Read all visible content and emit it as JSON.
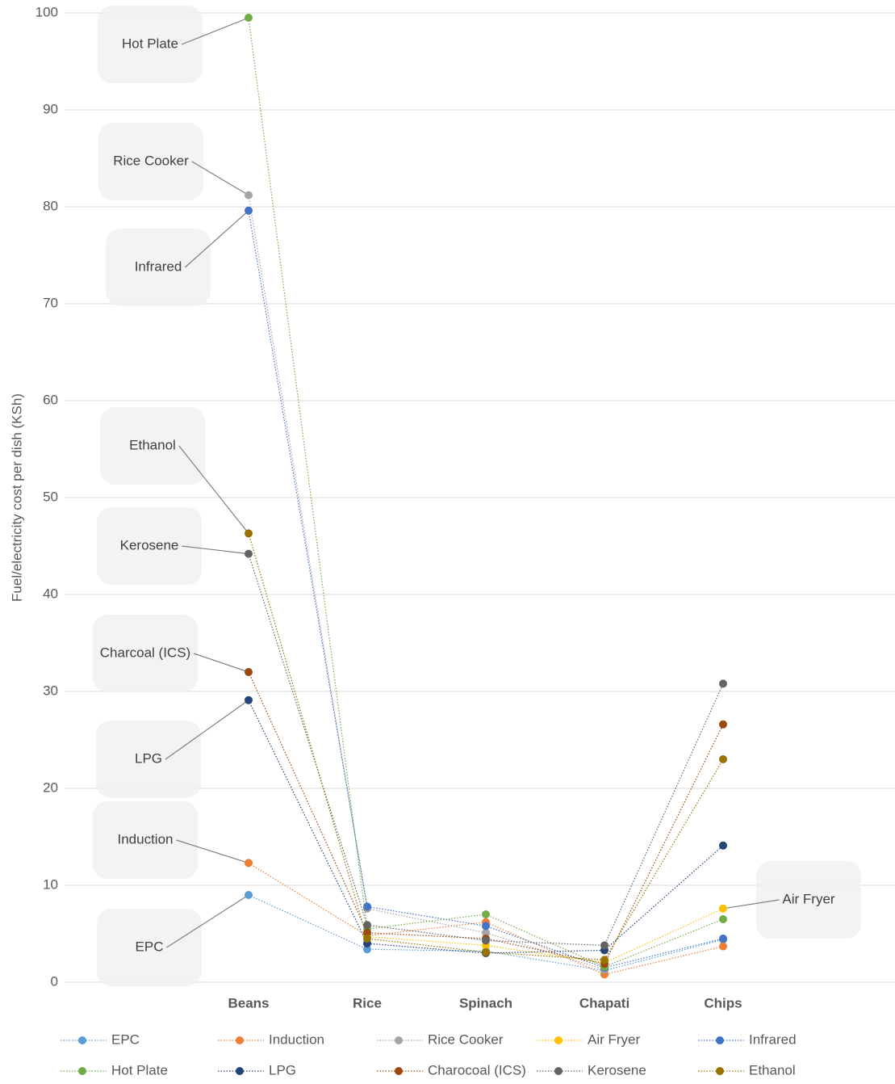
{
  "chart_data": {
    "type": "line",
    "y_label": "Fuel/electricity cost per dish (KSh)",
    "categories": [
      "Beans",
      "Rice",
      "Spinach",
      "Chapati",
      "Chips"
    ],
    "series": [
      {
        "name": "EPC",
        "color": "#5b9bd5",
        "values": [
          9.0,
          3.4,
          3.2,
          1.2,
          4.4
        ]
      },
      {
        "name": "Induction",
        "color": "#ed7d31",
        "values": [
          12.3,
          4.8,
          6.2,
          0.8,
          3.7
        ]
      },
      {
        "name": "Rice Cooker",
        "color": "#a5a5a5",
        "values": [
          81.2,
          7.6,
          5.1,
          1.3,
          null
        ]
      },
      {
        "name": "Air Fryer",
        "color": "#ffc000",
        "values": [
          null,
          4.7,
          3.8,
          2.0,
          7.6
        ]
      },
      {
        "name": "Infrared",
        "color": "#4472c4",
        "values": [
          79.6,
          7.8,
          5.8,
          1.5,
          4.5
        ]
      },
      {
        "name": "Hot Plate",
        "color": "#70ad47",
        "values": [
          99.5,
          5.5,
          7.0,
          1.6,
          6.5
        ]
      },
      {
        "name": "LPG",
        "color": "#264478",
        "values": [
          29.1,
          4.0,
          3.0,
          3.3,
          14.1
        ]
      },
      {
        "name": "Charocoal (ICS)",
        "color": "#9e480e",
        "values": [
          32.0,
          5.1,
          4.5,
          1.9,
          26.6
        ]
      },
      {
        "name": "Kerosene",
        "color": "#636363",
        "values": [
          44.2,
          5.9,
          4.3,
          3.8,
          30.8
        ]
      },
      {
        "name": "Ethanol",
        "color": "#997300",
        "values": [
          46.3,
          4.5,
          3.1,
          2.3,
          23.0
        ]
      }
    ],
    "annotations": [
      "Hot Plate",
      "Rice Cooker",
      "Infrared",
      "Ethanol",
      "Kerosene",
      "Charcoal (ICS)",
      "LPG",
      "Induction",
      "EPC",
      "Air Fryer"
    ],
    "ylim": [
      0,
      100
    ],
    "yticks": [
      0,
      10,
      20,
      30,
      40,
      50,
      60,
      70,
      80,
      90,
      100
    ],
    "grid": true,
    "legend": "bottom"
  }
}
